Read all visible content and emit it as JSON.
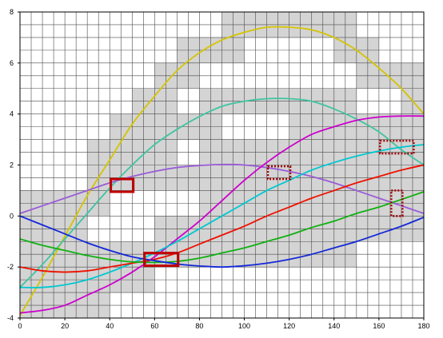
{
  "chart_data": {
    "type": "line",
    "title": "",
    "xlabel": "",
    "ylabel": "",
    "xlim": [
      0,
      180
    ],
    "ylim": [
      -4,
      8
    ],
    "grid": true,
    "x_ticks": [
      "0",
      "20",
      "40",
      "60",
      "80",
      "100",
      "120",
      "140",
      "160",
      "180"
    ],
    "y_ticks": [
      "-4",
      "-2",
      "0",
      "2",
      "4",
      "6",
      "8"
    ],
    "series": [
      {
        "color": "#d4c400",
        "x": [
          0,
          10,
          20,
          30,
          40,
          50,
          60,
          70,
          80,
          90,
          100,
          110,
          120,
          130,
          140,
          150,
          160,
          170,
          180
        ],
        "y": [
          -3.9,
          -2.4,
          -0.8,
          0.8,
          2.2,
          3.6,
          4.7,
          5.7,
          6.4,
          6.9,
          7.2,
          7.4,
          7.4,
          7.3,
          7.0,
          6.5,
          5.8,
          5.0,
          4.0
        ]
      },
      {
        "color": "#40c4a0",
        "x": [
          0,
          10,
          20,
          30,
          40,
          50,
          60,
          70,
          80,
          90,
          100,
          110,
          120,
          130,
          140,
          150,
          160,
          170,
          180
        ],
        "y": [
          -2.8,
          -1.9,
          -0.9,
          0.1,
          1.1,
          2.0,
          2.8,
          3.4,
          3.9,
          4.3,
          4.5,
          4.6,
          4.6,
          4.5,
          4.2,
          3.8,
          3.3,
          2.6,
          2.0
        ]
      },
      {
        "color": "#9a5cd8",
        "x": [
          0,
          10,
          20,
          30,
          40,
          50,
          60,
          70,
          80,
          90,
          100,
          110,
          120,
          130,
          140,
          150,
          160,
          170,
          180
        ],
        "y": [
          0.1,
          0.4,
          0.7,
          1.0,
          1.3,
          1.55,
          1.75,
          1.9,
          1.98,
          2.02,
          2.0,
          1.9,
          1.75,
          1.55,
          1.3,
          1.0,
          0.7,
          0.4,
          0.1
        ]
      },
      {
        "color": "#cc00cc",
        "x": [
          0,
          10,
          20,
          30,
          40,
          50,
          60,
          70,
          80,
          90,
          100,
          110,
          120,
          130,
          140,
          150,
          160,
          170,
          180
        ],
        "y": [
          -3.8,
          -3.7,
          -3.5,
          -3.1,
          -2.7,
          -2.2,
          -1.6,
          -0.9,
          -0.2,
          0.6,
          1.4,
          2.1,
          2.7,
          3.2,
          3.5,
          3.75,
          3.88,
          3.92,
          3.92
        ]
      },
      {
        "color": "#00c8d0",
        "x": [
          0,
          10,
          20,
          30,
          40,
          50,
          60,
          70,
          80,
          90,
          100,
          110,
          120,
          130,
          140,
          150,
          160,
          170,
          180
        ],
        "y": [
          -2.8,
          -2.8,
          -2.7,
          -2.5,
          -2.2,
          -1.85,
          -1.45,
          -1.0,
          -0.5,
          0.0,
          0.5,
          1.0,
          1.4,
          1.8,
          2.1,
          2.35,
          2.55,
          2.7,
          2.8
        ]
      },
      {
        "color": "#ee1100",
        "x": [
          0,
          10,
          20,
          30,
          40,
          50,
          60,
          70,
          80,
          90,
          100,
          110,
          120,
          130,
          140,
          150,
          160,
          170,
          180
        ],
        "y": [
          -2.0,
          -2.15,
          -2.2,
          -2.15,
          -2.0,
          -1.85,
          -1.7,
          -1.45,
          -1.1,
          -0.75,
          -0.4,
          0.0,
          0.35,
          0.7,
          1.0,
          1.3,
          1.55,
          1.8,
          2.0
        ]
      },
      {
        "color": "#11b011",
        "x": [
          0,
          10,
          20,
          30,
          40,
          50,
          60,
          70,
          80,
          90,
          100,
          110,
          120,
          130,
          140,
          150,
          160,
          170,
          180
        ],
        "y": [
          -0.9,
          -1.15,
          -1.35,
          -1.55,
          -1.7,
          -1.8,
          -1.82,
          -1.78,
          -1.65,
          -1.45,
          -1.25,
          -1.0,
          -0.75,
          -0.45,
          -0.2,
          0.1,
          0.35,
          0.65,
          0.95
        ]
      },
      {
        "color": "#1428d8",
        "x": [
          0,
          10,
          20,
          30,
          40,
          50,
          60,
          70,
          80,
          90,
          100,
          110,
          120,
          130,
          140,
          150,
          160,
          170,
          180
        ],
        "y": [
          0.0,
          -0.35,
          -0.7,
          -1.05,
          -1.35,
          -1.6,
          -1.75,
          -1.88,
          -1.96,
          -2.0,
          -1.95,
          -1.85,
          -1.7,
          -1.5,
          -1.25,
          -1.0,
          -0.7,
          -0.4,
          -0.05
        ]
      }
    ],
    "highlight_solid": [
      {
        "x": [
          40.5,
          50.5
        ],
        "y": [
          0.95,
          1.45
        ]
      },
      {
        "x": [
          55.5,
          70.5
        ],
        "y": [
          -1.95,
          -1.45
        ]
      }
    ],
    "highlight_dotted": [
      {
        "x": [
          110.5,
          120.5
        ],
        "y": [
          1.45,
          1.95
        ]
      },
      {
        "x": [
          160.5,
          175.5
        ],
        "y": [
          2.45,
          2.95
        ]
      },
      {
        "x": [
          165.5,
          170.5
        ],
        "y": [
          0.0,
          1.0
        ]
      }
    ],
    "shaded_cell_size": [
      5,
      0.5
    ]
  }
}
